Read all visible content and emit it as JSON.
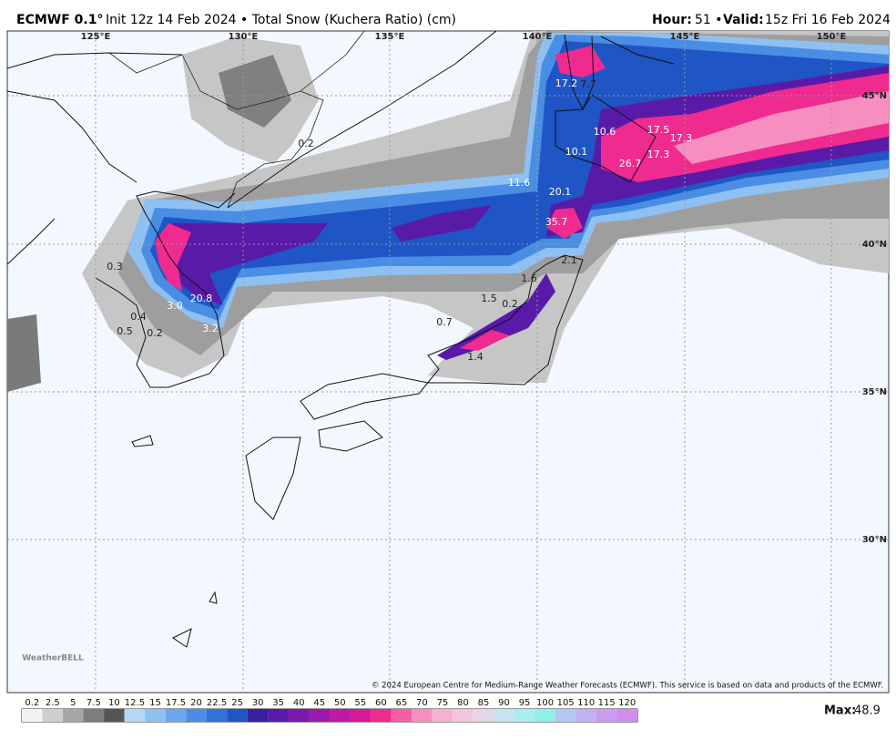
{
  "header": {
    "model": "ECMWF 0.1°",
    "title": "Init 12z 14 Feb 2024 • Total Snow (Kuchera Ratio) (cm)",
    "hour_label": "Hour:",
    "hour": "51 •",
    "valid_label": "Valid:",
    "valid": "15z Fri 16 Feb 2024"
  },
  "map": {
    "lon_labels": [
      "125°E",
      "130°E",
      "135°E",
      "140°E",
      "145°E",
      "150°E"
    ],
    "lat_labels": [
      "45°N",
      "40°N",
      "35°N",
      "30°N"
    ],
    "snow_labels": [
      "17.2",
      "7.7",
      "0.2",
      "10.6",
      "17.5",
      "17.3",
      "17.3",
      "10.1",
      "26.7",
      "11.6",
      "20.1",
      "35.7",
      "0.3",
      "2.1",
      "1.6",
      "20.8",
      "3.0",
      "0.4",
      "0.5",
      "0.2",
      "3.2",
      "1.5",
      "0.2",
      "0.7",
      "1.4"
    ],
    "credit": "© 2024 European Centre for Medium-Range Weather Forecasts (ECMWF). This service is based on data and products of the ECMWF.",
    "brand": "WeatherBELL"
  },
  "legend": {
    "values": [
      0.2,
      2.5,
      5,
      7.5,
      10,
      12.5,
      15,
      17.5,
      20,
      22.5,
      25,
      30,
      35,
      40,
      45,
      50,
      55,
      60,
      65,
      70,
      75,
      80,
      85,
      90,
      95,
      100,
      105,
      110,
      115,
      120
    ],
    "colors": [
      "#f2f2f2",
      "#cfcfcf",
      "#a6a6a6",
      "#7d7d7d",
      "#555555",
      "#b4d7f7",
      "#8fc0f2",
      "#6aa7ec",
      "#4a8de4",
      "#2f72d8",
      "#1f55c4",
      "#3a1f9e",
      "#5a1aa8",
      "#7a19ad",
      "#9b1aae",
      "#bd1aa8",
      "#d81a9a",
      "#ef2b8f",
      "#f45fa7",
      "#f68fc0",
      "#f6b1d2",
      "#f1c6dc",
      "#e3d6e6",
      "#c8e2ee",
      "#a8eef0",
      "#8ef0e6",
      "#b6c8f4",
      "#c2b1f2",
      "#cc9cf0",
      "#d08cef"
    ],
    "max_label": "Max:",
    "max_value": 48.9
  }
}
